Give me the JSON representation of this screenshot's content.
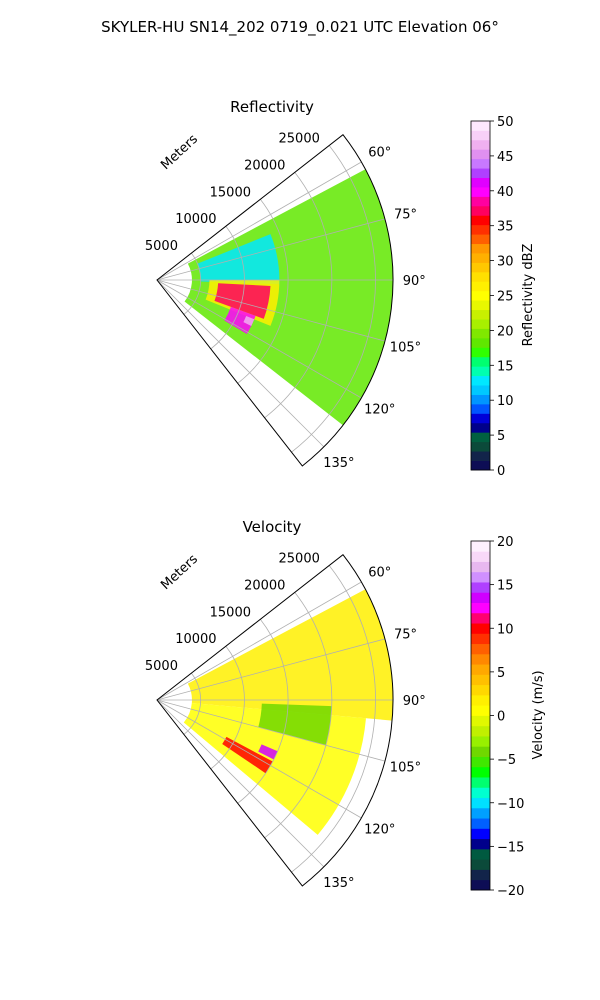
{
  "figure": {
    "suptitle": "SKYLER-HU  SN14_202  0719_0.021 UTC Elevation 06°"
  },
  "chart_data": [
    {
      "type": "heatmap",
      "projection": "polar-sector",
      "title": "Reflectivity",
      "radial_label": "Meters",
      "r_range": [
        0,
        27000
      ],
      "r_ticks": [
        5000,
        10000,
        15000,
        20000,
        25000
      ],
      "r_tick_labels": [
        "5000",
        "10000",
        "15000",
        "20000",
        "25000"
      ],
      "theta_range_deg": [
        52,
        142
      ],
      "theta_ticks_deg": [
        60,
        75,
        90,
        105,
        120,
        135
      ],
      "theta_tick_labels": [
        "60°",
        "75°",
        "90°",
        "105°",
        "120°",
        "135°"
      ],
      "grid": true,
      "colorbar": {
        "label": "Reflectivity dBZ",
        "range": [
          0,
          50
        ],
        "ticks": [
          0,
          5,
          10,
          15,
          20,
          25,
          30,
          35,
          40,
          45,
          50
        ],
        "tick_labels": [
          "0",
          "5",
          "10",
          "15",
          "20",
          "25",
          "30",
          "35",
          "40",
          "45",
          "50"
        ],
        "colors": [
          "#0d0d55",
          "#12244a",
          "#0b4a3a",
          "#006040",
          "#00008b",
          "#0000d8",
          "#0055ff",
          "#0095ff",
          "#00c8ff",
          "#00e8ff",
          "#00ffb0",
          "#00ff70",
          "#30ff00",
          "#60e800",
          "#80e800",
          "#a8f000",
          "#c8f000",
          "#e8f800",
          "#ffff00",
          "#fff000",
          "#ffe000",
          "#ffc800",
          "#ffb000",
          "#ff9800",
          "#ff6000",
          "#ff3000",
          "#ff0000",
          "#ff0060",
          "#ff00a0",
          "#ff00ff",
          "#e000ff",
          "#b040ff",
          "#c878ff",
          "#e090f0",
          "#f0b0f0",
          "#f8d0f8",
          "#fde8fd"
        ]
      },
      "echo_regions": [
        {
          "level": 18,
          "r": [
            4000,
            27000
          ],
          "theta_deg": [
            62,
            128
          ]
        },
        {
          "level": 13,
          "r": [
            5000,
            14000
          ],
          "theta_deg": [
            68,
            92
          ]
        },
        {
          "level": 27,
          "r": [
            6000,
            14000
          ],
          "theta_deg": [
            90,
            112
          ]
        },
        {
          "level": 37,
          "r": [
            7000,
            13000
          ],
          "theta_deg": [
            93,
            110
          ]
        },
        {
          "level": 40,
          "r": [
            9000,
            12000
          ],
          "theta_deg": [
            110,
            121
          ]
        },
        {
          "level": 47,
          "r": [
            11000,
            12000
          ],
          "theta_deg": [
            112,
            116
          ]
        }
      ]
    },
    {
      "type": "heatmap",
      "projection": "polar-sector",
      "title": "Velocity",
      "radial_label": "Meters",
      "r_range": [
        0,
        27000
      ],
      "r_ticks": [
        5000,
        10000,
        15000,
        20000,
        25000
      ],
      "r_tick_labels": [
        "5000",
        "10000",
        "15000",
        "20000",
        "25000"
      ],
      "theta_range_deg": [
        52,
        142
      ],
      "theta_ticks_deg": [
        60,
        75,
        90,
        105,
        120,
        135
      ],
      "theta_tick_labels": [
        "60°",
        "75°",
        "90°",
        "105°",
        "120°",
        "135°"
      ],
      "grid": true,
      "colorbar": {
        "label": "Velocity (m/s)",
        "range": [
          -20,
          20
        ],
        "ticks": [
          -20,
          -15,
          -10,
          -5,
          0,
          5,
          10,
          15,
          20
        ],
        "tick_labels": [
          "−20",
          "−15",
          "−10",
          "−5",
          "0",
          "5",
          "10",
          "15",
          "20"
        ],
        "colors": [
          "#0d0d55",
          "#12244a",
          "#0b4a3a",
          "#005a40",
          "#00008b",
          "#0000ff",
          "#0060ff",
          "#00a0ff",
          "#00e0ff",
          "#00ffd0",
          "#00ff70",
          "#00ff00",
          "#40e800",
          "#70d800",
          "#98f000",
          "#c0f000",
          "#e0f800",
          "#ffff00",
          "#fff000",
          "#ffd800",
          "#ffc000",
          "#ffa800",
          "#ff8800",
          "#ff6000",
          "#ff3000",
          "#ff0000",
          "#ff0070",
          "#ff00ff",
          "#d000ff",
          "#b040ff",
          "#d090ff",
          "#e8b8f0",
          "#f8d8f8",
          "#fdf0fd"
        ]
      },
      "echo_regions": [
        {
          "level": 2,
          "r": [
            4000,
            27000
          ],
          "theta_deg": [
            62,
            95
          ]
        },
        {
          "level": 1,
          "r": [
            4000,
            24000
          ],
          "theta_deg": [
            95,
            130
          ]
        },
        {
          "level": -4,
          "r": [
            12000,
            20000
          ],
          "theta_deg": [
            92,
            105
          ]
        },
        {
          "level": 10,
          "r": [
            9000,
            15000
          ],
          "theta_deg": [
            118,
            124
          ]
        },
        {
          "level": 14,
          "r": [
            13000,
            15000
          ],
          "theta_deg": [
            113,
            117
          ]
        }
      ]
    }
  ]
}
